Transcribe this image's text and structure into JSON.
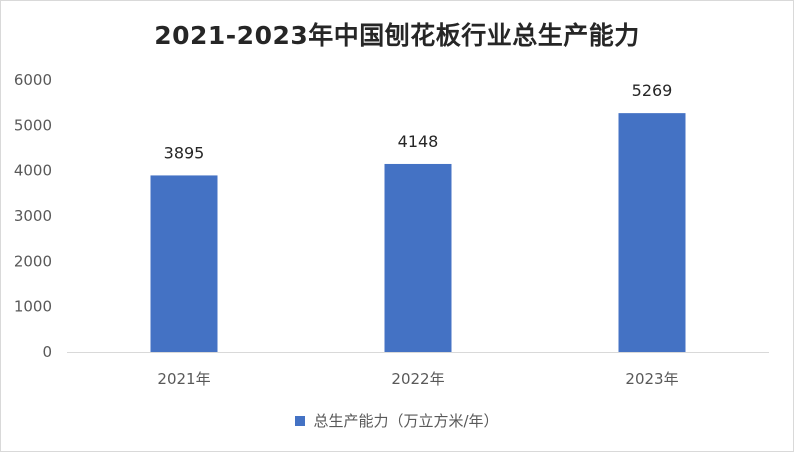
{
  "chart_data": {
    "type": "bar",
    "title": "2021-2023年中国刨花板行业总生产能力",
    "categories": [
      "2021年",
      "2022年",
      "2023年"
    ],
    "series": [
      {
        "name": "总生产能力（万立方米/年）",
        "values": [
          3895,
          4148,
          5269
        ],
        "color": "#4472C4"
      }
    ],
    "ylim": [
      0,
      6000
    ],
    "yticks": [
      0,
      1000,
      2000,
      3000,
      4000,
      5000,
      6000
    ],
    "xlabel": "",
    "ylabel": "",
    "grid": false,
    "legend": "bottom",
    "data_labels": [
      "3895",
      "4148",
      "5269"
    ]
  }
}
